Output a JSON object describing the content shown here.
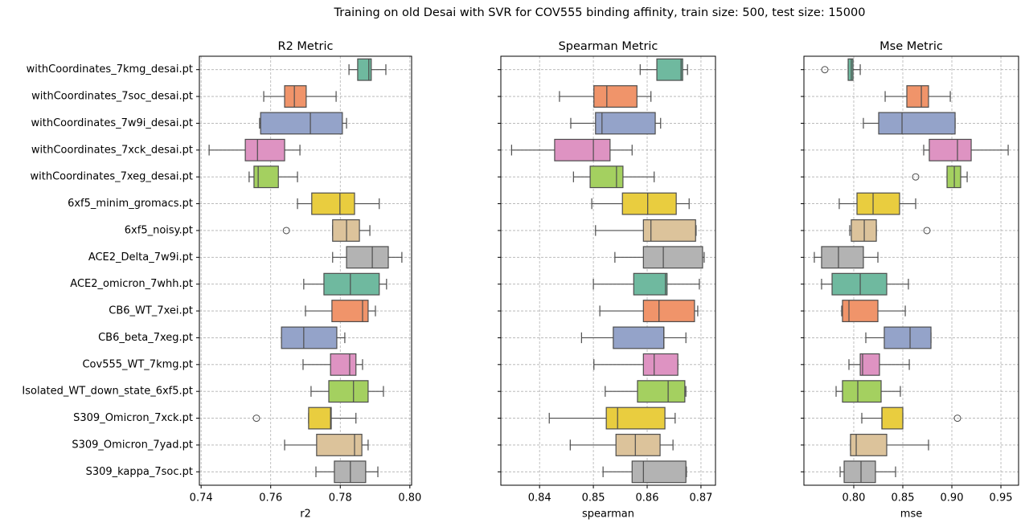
{
  "title": "Training on old Desai with SVR for COV555 binding affinity, train size: 500, test size: 15000",
  "chart_data": [
    {
      "type": "box",
      "title": "R2 Metric",
      "xlabel": "r2",
      "categories": [
        "withCoordinates_7kmg_desai.pt",
        "withCoordinates_7soc_desai.pt",
        "withCoordinates_7w9i_desai.pt",
        "withCoordinates_7xck_desai.pt",
        "withCoordinates_7xeg_desai.pt",
        "6xf5_minim_gromacs.pt",
        "6xf5_noisy.pt",
        "ACE2_Delta_7w9i.pt",
        "ACE2_omicron_7whh.pt",
        "CB6_WT_7xei.pt",
        "CB6_beta_7xeg.pt",
        "Cov555_WT_7kmg.pt",
        "Isolated_WT_down_state_6xf5.pt",
        "S309_Omicron_7xck.pt",
        "S309_Omicron_7yad.pt",
        "S309_kappa_7soc.pt"
      ],
      "palette": [
        "#6fb99f",
        "#f0946a",
        "#94a3c9",
        "#de93c2",
        "#a4d060",
        "#e9cd3f",
        "#dcc39b",
        "#b3b3b3"
      ],
      "xlim": [
        0.7395,
        0.8005
      ],
      "xticks": [
        0.74,
        0.76,
        0.78,
        {
          "value": 0.8,
          "label": "0.80"
        }
      ],
      "grid": true,
      "boxes": [
        {
          "min": 0.7825,
          "q1": 0.785,
          "median": 0.7882,
          "q3": 0.7889,
          "max": 0.7931
        },
        {
          "min": 0.758,
          "q1": 0.764,
          "median": 0.7668,
          "q3": 0.7702,
          "max": 0.7788
        },
        {
          "min": 0.7568,
          "q1": 0.7571,
          "median": 0.7714,
          "q3": 0.7806,
          "max": 0.7818
        },
        {
          "min": 0.7423,
          "q1": 0.7527,
          "median": 0.7562,
          "q3": 0.764,
          "max": 0.7684
        },
        {
          "min": 0.7538,
          "q1": 0.7552,
          "median": 0.7564,
          "q3": 0.7622,
          "max": 0.7677
        },
        {
          "min": 0.7677,
          "q1": 0.7718,
          "median": 0.7799,
          "q3": 0.7841,
          "max": 0.7912
        },
        {
          "min": 0.7778,
          "q1": 0.7778,
          "median": 0.7818,
          "q3": 0.7855,
          "max": 0.7885,
          "outliers": [
            0.7645
          ]
        },
        {
          "min": 0.7778,
          "q1": 0.7818,
          "median": 0.7892,
          "q3": 0.7938,
          "max": 0.7977
        },
        {
          "min": 0.7695,
          "q1": 0.7753,
          "median": 0.7829,
          "q3": 0.7912,
          "max": 0.7933
        },
        {
          "min": 0.77,
          "q1": 0.7776,
          "median": 0.7864,
          "q3": 0.788,
          "max": 0.7901
        },
        {
          "min": 0.7631,
          "q1": 0.7631,
          "median": 0.7695,
          "q3": 0.779,
          "max": 0.7813
        },
        {
          "min": 0.7693,
          "q1": 0.7772,
          "median": 0.7827,
          "q3": 0.7845,
          "max": 0.7864
        },
        {
          "min": 0.7716,
          "q1": 0.7767,
          "median": 0.7838,
          "q3": 0.788,
          "max": 0.7924
        },
        {
          "min": 0.7709,
          "q1": 0.7709,
          "median": 0.7772,
          "q3": 0.7774,
          "max": 0.7845,
          "outliers": [
            0.7559
          ]
        },
        {
          "min": 0.764,
          "q1": 0.7732,
          "median": 0.7841,
          "q3": 0.7862,
          "max": 0.788
        },
        {
          "min": 0.773,
          "q1": 0.7783,
          "median": 0.7829,
          "q3": 0.7873,
          "max": 0.7908
        }
      ]
    },
    {
      "type": "box",
      "title": "Spearman Metric",
      "xlabel": "spearman",
      "palette": [
        "#6fb99f",
        "#f0946a",
        "#94a3c9",
        "#de93c2",
        "#a4d060",
        "#e9cd3f",
        "#dcc39b",
        "#b3b3b3"
      ],
      "xlim": [
        0.8328,
        0.8727
      ],
      "xticks": [
        0.84,
        0.85,
        0.86,
        0.87
      ],
      "grid": true,
      "boxes": [
        {
          "min": 0.8587,
          "q1": 0.8618,
          "median": 0.8663,
          "q3": 0.8666,
          "max": 0.8675
        },
        {
          "min": 0.8437,
          "q1": 0.8501,
          "median": 0.8525,
          "q3": 0.8581,
          "max": 0.8607
        },
        {
          "min": 0.8458,
          "q1": 0.8504,
          "median": 0.8516,
          "q3": 0.8615,
          "max": 0.8625
        },
        {
          "min": 0.8348,
          "q1": 0.8428,
          "median": 0.85,
          "q3": 0.8531,
          "max": 0.8572
        },
        {
          "min": 0.8463,
          "q1": 0.8494,
          "median": 0.8543,
          "q3": 0.8555,
          "max": 0.8613
        },
        {
          "min": 0.8497,
          "q1": 0.8554,
          "median": 0.8601,
          "q3": 0.8654,
          "max": 0.8678
        },
        {
          "min": 0.8504,
          "q1": 0.8593,
          "median": 0.8607,
          "q3": 0.869,
          "max": 0.8691
        },
        {
          "min": 0.854,
          "q1": 0.8593,
          "median": 0.863,
          "q3": 0.8703,
          "max": 0.8706
        },
        {
          "min": 0.85,
          "q1": 0.8575,
          "median": 0.8634,
          "q3": 0.8637,
          "max": 0.8697
        },
        {
          "min": 0.8512,
          "q1": 0.8593,
          "median": 0.8622,
          "q3": 0.8688,
          "max": 0.8694
        },
        {
          "min": 0.8478,
          "q1": 0.8537,
          "median": 0.8631,
          "q3": 0.8631,
          "max": 0.8672
        },
        {
          "min": 0.8501,
          "q1": 0.8593,
          "median": 0.8613,
          "q3": 0.8657,
          "max": 0.8657
        },
        {
          "min": 0.8522,
          "q1": 0.8582,
          "median": 0.8639,
          "q3": 0.867,
          "max": 0.8672
        },
        {
          "min": 0.8418,
          "q1": 0.8524,
          "median": 0.8545,
          "q3": 0.8633,
          "max": 0.8652
        },
        {
          "min": 0.8457,
          "q1": 0.8542,
          "median": 0.8578,
          "q3": 0.8624,
          "max": 0.8648
        },
        {
          "min": 0.8518,
          "q1": 0.8572,
          "median": 0.8593,
          "q3": 0.8672,
          "max": 0.8673
        }
      ]
    },
    {
      "type": "box",
      "title": "Mse Metric",
      "xlabel": "mse",
      "palette": [
        "#6fb99f",
        "#f0946a",
        "#94a3c9",
        "#de93c2",
        "#a4d060",
        "#e9cd3f",
        "#dcc39b",
        "#b3b3b3"
      ],
      "xlim": [
        0.7492,
        0.968
      ],
      "xticks": [
        {
          "value": 0.8,
          "label": "0.80"
        },
        0.85,
        {
          "value": 0.9,
          "label": "0.90"
        },
        0.95
      ],
      "grid": true,
      "boxes": [
        {
          "min": 0.7943,
          "q1": 0.7943,
          "median": 0.7975,
          "q3": 0.7992,
          "max": 0.8066,
          "outliers": [
            0.7705
          ]
        },
        {
          "min": 0.832,
          "q1": 0.8541,
          "median": 0.8689,
          "q3": 0.8762,
          "max": 0.8984
        },
        {
          "min": 0.8098,
          "q1": 0.8254,
          "median": 0.8492,
          "q3": 0.9033,
          "max": 0.9033
        },
        {
          "min": 0.8713,
          "q1": 0.877,
          "median": 0.9057,
          "q3": 0.9197,
          "max": 0.9574
        },
        {
          "min": 0.8951,
          "q1": 0.8951,
          "median": 0.9025,
          "q3": 0.909,
          "max": 0.9156,
          "outliers": [
            0.8631
          ]
        },
        {
          "min": 0.7852,
          "q1": 0.8033,
          "median": 0.8197,
          "q3": 0.8467,
          "max": 0.8631
        },
        {
          "min": 0.7959,
          "q1": 0.7975,
          "median": 0.8107,
          "q3": 0.823,
          "max": 0.823,
          "outliers": [
            0.8746
          ]
        },
        {
          "min": 0.7598,
          "q1": 0.7672,
          "median": 0.7844,
          "q3": 0.8098,
          "max": 0.8246
        },
        {
          "min": 0.7672,
          "q1": 0.7779,
          "median": 0.8066,
          "q3": 0.8336,
          "max": 0.8557
        },
        {
          "min": 0.7877,
          "q1": 0.7885,
          "median": 0.7951,
          "q3": 0.8246,
          "max": 0.8525
        },
        {
          "min": 0.8123,
          "q1": 0.8311,
          "median": 0.8574,
          "q3": 0.8787,
          "max": 0.8787
        },
        {
          "min": 0.7951,
          "q1": 0.8066,
          "median": 0.809,
          "q3": 0.8262,
          "max": 0.8566
        },
        {
          "min": 0.782,
          "q1": 0.7885,
          "median": 0.8041,
          "q3": 0.8279,
          "max": 0.8475
        },
        {
          "min": 0.8082,
          "q1": 0.8287,
          "median": 0.8287,
          "q3": 0.85,
          "max": 0.85,
          "outliers": [
            0.9057
          ]
        },
        {
          "min": 0.7967,
          "q1": 0.7967,
          "median": 0.8025,
          "q3": 0.8336,
          "max": 0.8762
        },
        {
          "min": 0.7861,
          "q1": 0.7902,
          "median": 0.8074,
          "q3": 0.8221,
          "max": 0.8426
        }
      ]
    }
  ]
}
